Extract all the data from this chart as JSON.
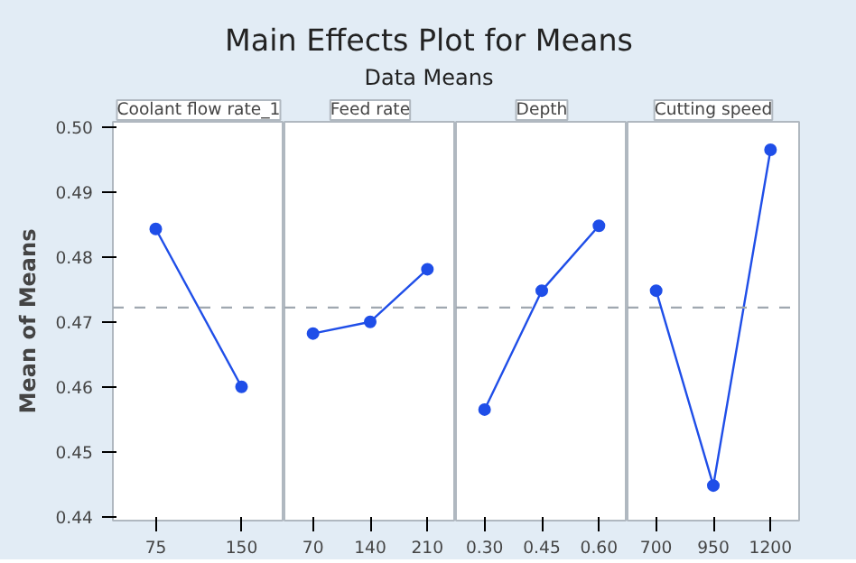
{
  "chart_data": [
    {
      "type": "other",
      "title": "Main Effects Plot for Means",
      "subtitle": "Data Means"
    },
    {
      "type": "line",
      "title": "Coolant flow rate_1",
      "ylabel": "Mean of Means",
      "categories": [
        "75",
        "150"
      ],
      "values": [
        0.4843,
        0.46
      ],
      "color": "#1f4ee8",
      "marker": "circle",
      "ylim": [
        0.4394,
        0.5008
      ],
      "yticks": [
        0.44,
        0.45,
        0.46,
        0.47,
        0.48,
        0.49,
        {
          "value": 0.5,
          "label": "0.50"
        }
      ],
      "ref_lines": [
        {
          "axis": "y",
          "value": 0.4722,
          "line_style": "dashed",
          "color": "#a0a8b0"
        }
      ],
      "grid": false
    },
    {
      "type": "line",
      "title": "Feed rate",
      "categories": [
        "70",
        "140",
        "210"
      ],
      "values": [
        0.4682,
        0.47,
        0.4781
      ],
      "color": "#1f4ee8",
      "marker": "circle",
      "ylim": [
        0.4394,
        0.5008
      ],
      "tick_labels": "x",
      "ref_lines": [
        {
          "axis": "y",
          "value": 0.4722,
          "line_style": "dashed",
          "color": "#a0a8b0"
        }
      ],
      "grid": false
    },
    {
      "type": "line",
      "title": "Depth",
      "categories": [
        "0.30",
        "0.45",
        "0.60"
      ],
      "values": [
        0.4565,
        0.4748,
        0.4848
      ],
      "color": "#1f4ee8",
      "marker": "circle",
      "ylim": [
        0.4394,
        0.5008
      ],
      "tick_labels": "x",
      "ref_lines": [
        {
          "axis": "y",
          "value": 0.4722,
          "line_style": "dashed",
          "color": "#a0a8b0"
        }
      ],
      "grid": false
    },
    {
      "type": "line",
      "title": "Cutting speed",
      "categories": [
        "700",
        "950",
        "1200"
      ],
      "values": [
        0.4748,
        0.4448,
        0.4965
      ],
      "color": "#1f4ee8",
      "marker": "circle",
      "ylim": [
        0.4394,
        0.5008
      ],
      "tick_labels": "x",
      "ref_lines": [
        {
          "axis": "y",
          "value": 0.4722,
          "line_style": "dashed",
          "color": "#a0a8b0"
        }
      ],
      "grid": false
    }
  ]
}
